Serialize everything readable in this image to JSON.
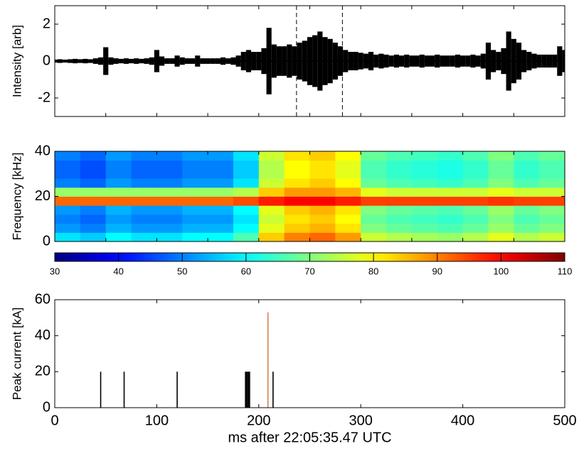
{
  "chart_data": [
    {
      "type": "line",
      "ylabel": "Intensity [arb]",
      "x": [
        0,
        5,
        10,
        15,
        20,
        25,
        30,
        35,
        40,
        45,
        50,
        55,
        60,
        65,
        70,
        75,
        80,
        85,
        90,
        95,
        100,
        105,
        110,
        115,
        120,
        125,
        130,
        135,
        140,
        145,
        150,
        155,
        160,
        165,
        170,
        175,
        180,
        185,
        190,
        195,
        200,
        205,
        210,
        215,
        220,
        225,
        230,
        235,
        240,
        245,
        250,
        255,
        260,
        265,
        270,
        275,
        280,
        285,
        290,
        295,
        300,
        305,
        310,
        315,
        320,
        325,
        330,
        335,
        340,
        345,
        350,
        355,
        360,
        365,
        370,
        375,
        380,
        385,
        390,
        395,
        400,
        405,
        410,
        415,
        420,
        425,
        430,
        435,
        440,
        445,
        450,
        455,
        460,
        465,
        470,
        475,
        480,
        485,
        490,
        495,
        500
      ],
      "values": [
        0.08,
        0.1,
        0.08,
        0.1,
        0.12,
        0.1,
        0.12,
        0.1,
        0.15,
        0.2,
        0.75,
        0.2,
        0.15,
        0.12,
        0.15,
        0.12,
        0.15,
        0.12,
        0.15,
        0.2,
        0.6,
        0.25,
        0.15,
        0.15,
        0.3,
        0.2,
        0.15,
        0.15,
        0.3,
        0.15,
        0.15,
        0.15,
        0.15,
        0.2,
        0.15,
        0.2,
        0.3,
        0.5,
        0.6,
        0.5,
        0.5,
        0.7,
        1.8,
        0.9,
        0.8,
        0.8,
        0.9,
        0.8,
        1.0,
        1.1,
        1.3,
        1.4,
        1.6,
        1.3,
        1.2,
        1.0,
        0.8,
        0.6,
        0.5,
        0.5,
        0.45,
        0.4,
        0.5,
        0.35,
        0.4,
        0.35,
        0.3,
        0.35,
        0.3,
        0.35,
        0.3,
        0.3,
        0.35,
        0.3,
        0.3,
        0.35,
        0.3,
        0.3,
        0.3,
        0.35,
        0.3,
        0.3,
        0.35,
        0.3,
        0.4,
        1.0,
        0.6,
        0.5,
        0.7,
        1.6,
        1.2,
        1.0,
        0.6,
        0.5,
        0.4,
        0.35,
        0.35,
        0.35,
        0.35,
        0.8,
        0.6
      ],
      "color": "#000000",
      "vlines": [
        237,
        282
      ],
      "xlim": [
        0,
        500
      ],
      "xticks": [
        0,
        50,
        100,
        150,
        200,
        250,
        300,
        350,
        400,
        450,
        500
      ],
      "ylim": [
        -3,
        3
      ],
      "yticks": [
        -2,
        0,
        2
      ]
    },
    {
      "type": "heatmap",
      "ylabel": "Frequency [kHz]",
      "colormap": "jet",
      "z": [
        [
          58,
          56,
          60,
          58,
          58,
          60,
          60,
          66,
          84,
          90,
          92,
          88,
          76,
          74,
          73,
          72,
          74,
          78,
          74,
          76
        ],
        [
          52,
          50,
          54,
          52,
          52,
          54,
          54,
          60,
          78,
          84,
          86,
          82,
          70,
          68,
          67,
          66,
          68,
          72,
          68,
          70
        ],
        [
          50,
          48,
          52,
          50,
          50,
          52,
          52,
          58,
          76,
          82,
          84,
          80,
          68,
          66,
          65,
          64,
          66,
          70,
          66,
          68
        ],
        [
          52,
          50,
          54,
          52,
          52,
          54,
          54,
          60,
          78,
          84,
          86,
          82,
          70,
          68,
          67,
          66,
          68,
          72,
          68,
          70
        ],
        [
          92,
          92,
          92,
          92,
          92,
          92,
          92,
          94,
          98,
          100,
          100,
          98,
          95,
          95,
          95,
          95,
          95,
          96,
          95,
          95
        ],
        [
          72,
          72,
          72,
          72,
          72,
          72,
          72,
          74,
          84,
          88,
          88,
          86,
          78,
          76,
          76,
          76,
          76,
          78,
          76,
          76
        ],
        [
          50,
          48,
          52,
          50,
          50,
          52,
          52,
          58,
          76,
          82,
          84,
          80,
          68,
          66,
          65,
          64,
          66,
          70,
          66,
          68
        ],
        [
          48,
          46,
          50,
          48,
          48,
          50,
          50,
          56,
          74,
          80,
          82,
          78,
          66,
          64,
          63,
          62,
          64,
          68,
          64,
          66
        ],
        [
          48,
          46,
          50,
          48,
          48,
          50,
          50,
          56,
          74,
          80,
          82,
          78,
          66,
          64,
          63,
          62,
          64,
          68,
          64,
          66
        ],
        [
          50,
          48,
          52,
          50,
          50,
          52,
          52,
          58,
          76,
          82,
          84,
          80,
          68,
          66,
          65,
          64,
          66,
          70,
          66,
          68
        ]
      ],
      "xlim": [
        0,
        500
      ],
      "xticks": [
        0,
        50,
        100,
        150,
        200,
        250,
        300,
        350,
        400,
        450,
        500
      ],
      "ylim": [
        0,
        40
      ],
      "yticks": [
        0,
        20,
        40
      ],
      "clim": [
        30,
        110
      ],
      "cticks": [
        30,
        40,
        50,
        60,
        70,
        80,
        90,
        100,
        110
      ]
    },
    {
      "type": "stem",
      "ylabel": "Peak current [kA]",
      "xlabel": "ms after 22:05:35.47 UTC",
      "series": [
        {
          "color": "#000000",
          "x": [
            45,
            68,
            120,
            187,
            188,
            189,
            190,
            191,
            214
          ],
          "values": [
            20,
            20,
            20,
            20,
            20,
            20,
            20,
            20,
            20
          ]
        },
        {
          "color": "#d9804a",
          "x": [
            209
          ],
          "values": [
            53
          ]
        }
      ],
      "xlim": [
        0,
        500
      ],
      "xticks": [
        0,
        100,
        200,
        300,
        400,
        500
      ],
      "ylim": [
        0,
        60
      ],
      "yticks": [
        0,
        20,
        40,
        60
      ]
    }
  ]
}
